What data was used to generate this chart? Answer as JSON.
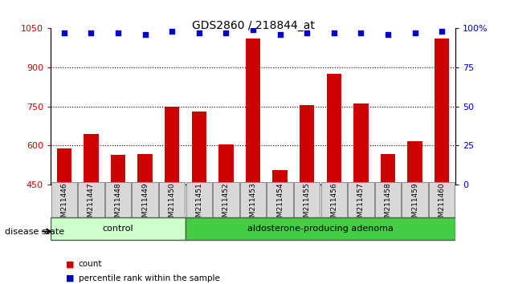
{
  "title": "GDS2860 / 218844_at",
  "categories": [
    "GSM211446",
    "GSM211447",
    "GSM211448",
    "GSM211449",
    "GSM211450",
    "GSM211451",
    "GSM211452",
    "GSM211453",
    "GSM211454",
    "GSM211455",
    "GSM211456",
    "GSM211457",
    "GSM211458",
    "GSM211459",
    "GSM211460"
  ],
  "bar_values": [
    590,
    645,
    565,
    568,
    748,
    732,
    605,
    1010,
    505,
    755,
    875,
    762,
    568,
    618,
    1010
  ],
  "percentile_values": [
    97,
    97,
    97,
    96,
    98,
    97,
    97,
    99,
    96,
    97,
    97,
    97,
    96,
    97,
    98
  ],
  "bar_color": "#cc0000",
  "percentile_color": "#0000cc",
  "ylim_left": [
    450,
    1050
  ],
  "ylim_right": [
    0,
    100
  ],
  "yticks_left": [
    450,
    600,
    750,
    900,
    1050
  ],
  "yticks_right": [
    0,
    25,
    50,
    75,
    100
  ],
  "grid_values": [
    600,
    750,
    900
  ],
  "group_labels": [
    "control",
    "aldosterone-producing adenoma"
  ],
  "group_colors": [
    "#ccffcc",
    "#44cc44"
  ],
  "disease_state_label": "disease state",
  "legend_count_color": "#cc0000",
  "legend_pct_color": "#0000cc",
  "tick_color_left": "#cc0000",
  "tick_color_right": "#0000cc",
  "n_control": 5,
  "n_adenoma": 10,
  "bar_width": 0.55
}
